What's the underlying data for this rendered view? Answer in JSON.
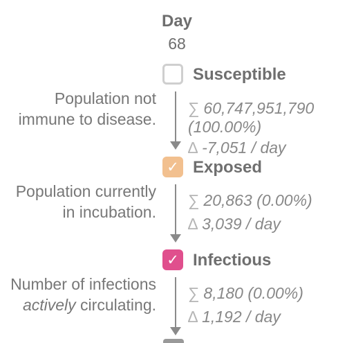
{
  "day": {
    "label": "Day",
    "value": "68"
  },
  "stages": [
    {
      "name": "Susceptible",
      "checked": false,
      "checkmark": "",
      "desc": "Population not immune to disease.",
      "sum_symbol": "∑",
      "sum_line1": "60,747,951,790",
      "sum_line2": "(100.00%)",
      "delta_symbol": "∆",
      "delta": "-7,051 / day"
    },
    {
      "name": "Exposed",
      "checked": true,
      "checkmark": "✓",
      "color": "#f2c08f",
      "desc": "Population currently in incubation.",
      "sum_symbol": "∑",
      "sum": "20,863 (0.00%)",
      "delta_symbol": "∆",
      "delta": "3,039 / day"
    },
    {
      "name": "Infectious",
      "checked": true,
      "checkmark": "✓",
      "color": "#e04f8d",
      "desc_pre": "Number of infections ",
      "desc_em": "actively",
      "desc_post": " circulating.",
      "sum_symbol": "∑",
      "sum": "8,180 (0.00%)",
      "delta_symbol": "∆",
      "delta": "1,192 / day"
    }
  ]
}
